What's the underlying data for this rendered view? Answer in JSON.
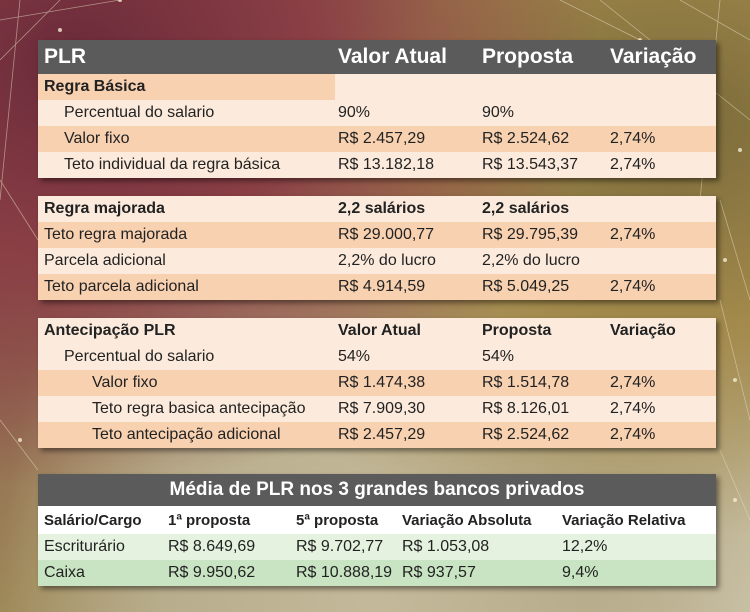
{
  "plr_header": {
    "label": "PLR",
    "valor_atual": "Valor Atual",
    "proposta": "Proposta",
    "variacao": "Variação"
  },
  "regra_basica": {
    "title": "Regra Básica",
    "rows": [
      {
        "label": "Percentual do salario",
        "valor": "90%",
        "proposta": "90%",
        "variacao": ""
      },
      {
        "label": "Valor fixo",
        "valor": "R$ 2.457,29",
        "proposta": "R$ 2.524,62",
        "variacao": "2,74%"
      },
      {
        "label": "Teto individual da regra básica",
        "valor": "R$ 13.182,18",
        "proposta": "R$ 13.543,37",
        "variacao": "2,74%"
      }
    ]
  },
  "regra_majorada": {
    "title": "Regra majorada",
    "valor": "2,2 salários",
    "proposta": "2,2 salários",
    "rows": [
      {
        "label": "Teto regra majorada",
        "valor": "R$ 29.000,77",
        "proposta": "R$ 29.795,39",
        "variacao": "2,74%"
      },
      {
        "label": "Parcela adicional",
        "valor": "2,2% do lucro",
        "proposta": "2,2% do lucro",
        "variacao": ""
      },
      {
        "label": "Teto parcela adicional",
        "valor": "R$ 4.914,59",
        "proposta": "R$ 5.049,25",
        "variacao": "2,74%"
      }
    ]
  },
  "antecipacao": {
    "title": "Antecipação PLR",
    "valor_atual": "Valor Atual",
    "proposta": "Proposta",
    "variacao": "Variação",
    "rows": [
      {
        "label": "Percentual do salario",
        "valor": "54%",
        "proposta": "54%",
        "variacao": ""
      },
      {
        "label": "Valor fixo",
        "valor": "R$ 1.474,38",
        "proposta": "R$ 1.514,78",
        "variacao": "2,74%"
      },
      {
        "label": "Teto regra basica antecipação",
        "valor": "R$ 7.909,30",
        "proposta": "R$ 8.126,01",
        "variacao": "2,74%"
      },
      {
        "label": "Teto antecipação adicional",
        "valor": "R$ 2.457,29",
        "proposta": "R$ 2.524,62",
        "variacao": "2,74%"
      }
    ]
  },
  "media": {
    "title": "Média de PLR nos 3 grandes bancos privados",
    "headers": [
      "Salário/Cargo",
      "1ª proposta",
      "5ª proposta",
      "Variação Absoluta",
      "Variação Relativa"
    ],
    "rows": [
      [
        "Escriturário",
        "R$ 8.649,69",
        "R$ 9.702,77",
        "R$ 1.053,08",
        "12,2%"
      ],
      [
        "Caixa",
        "R$ 9.950,62",
        "R$ 10.888,19",
        "R$ 937,57",
        "9,4%"
      ]
    ]
  }
}
